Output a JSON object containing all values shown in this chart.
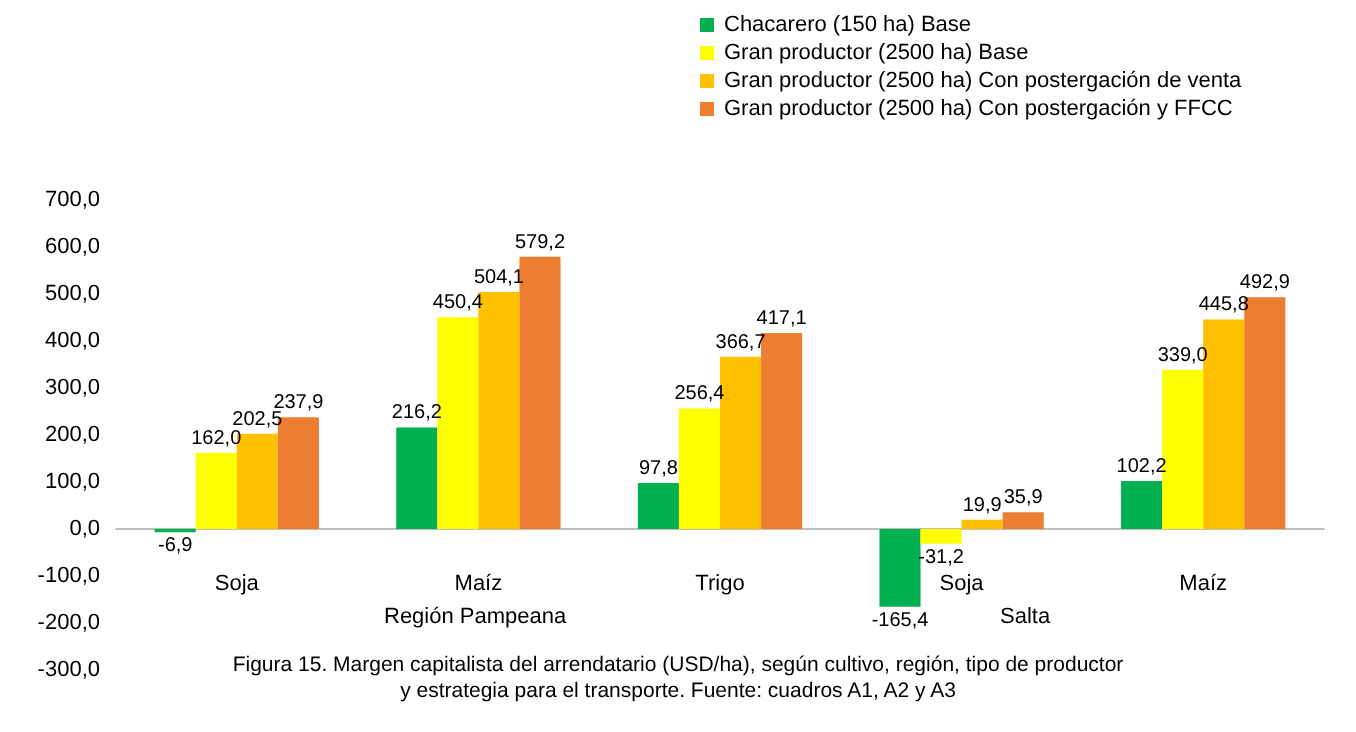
{
  "chart_data": {
    "type": "bar",
    "categories": [
      "Soja",
      "Maíz",
      "Trigo",
      "Soja",
      "Maíz"
    ],
    "series": [
      {
        "name": "Chacarero (150 ha) Base",
        "color": "#00b050",
        "values": [
          -6.9,
          216.2,
          97.8,
          -165.4,
          102.2
        ],
        "value_labels": [
          "-6,9",
          "216,2",
          "97,8",
          "-165,4",
          "102,2"
        ]
      },
      {
        "name": "Gran productor (2500 ha) Base",
        "color": "#ffff00",
        "values": [
          162.0,
          450.4,
          256.4,
          -31.2,
          339.0
        ],
        "value_labels": [
          "162,0",
          "450,4",
          "256,4",
          "-31,2",
          "339,0"
        ]
      },
      {
        "name": "Gran productor (2500 ha) Con postergación de venta",
        "color": "#ffc000",
        "values": [
          202.5,
          504.1,
          366.7,
          19.9,
          445.8
        ],
        "value_labels": [
          "202,5",
          "504,1",
          "366,7",
          "19,9",
          "445,8"
        ]
      },
      {
        "name": "Gran productor (2500 ha) Con postergación y FFCC",
        "color": "#ed7d31",
        "values": [
          237.9,
          579.2,
          417.1,
          35.9,
          492.9
        ],
        "value_labels": [
          "237,9",
          "579,2",
          "417,1",
          "35,9",
          "492,9"
        ]
      }
    ],
    "ylim": [
      -300,
      700
    ],
    "yticks": [
      {
        "value": -300,
        "label": "-300,0"
      },
      {
        "value": -200,
        "label": "-200,0"
      },
      {
        "value": -100,
        "label": "-100,0"
      },
      {
        "value": 0,
        "label": "0,0"
      },
      {
        "value": 100,
        "label": "100,0"
      },
      {
        "value": 200,
        "label": "200,0"
      },
      {
        "value": 300,
        "label": "300,0"
      },
      {
        "value": 400,
        "label": "400,0"
      },
      {
        "value": 500,
        "label": "500,0"
      },
      {
        "value": 600,
        "label": "600,0"
      },
      {
        "value": 700,
        "label": "700,0"
      }
    ],
    "grid": false,
    "legend": "top right",
    "annotations": [
      "Región Pampeana",
      "Salta",
      "Figura 15. Margen capitalista del arrendatario (USD/ha), según cultivo, región, tipo de productor\ny estrategia para el transporte. Fuente: cuadros A1, A2 y A3"
    ]
  }
}
